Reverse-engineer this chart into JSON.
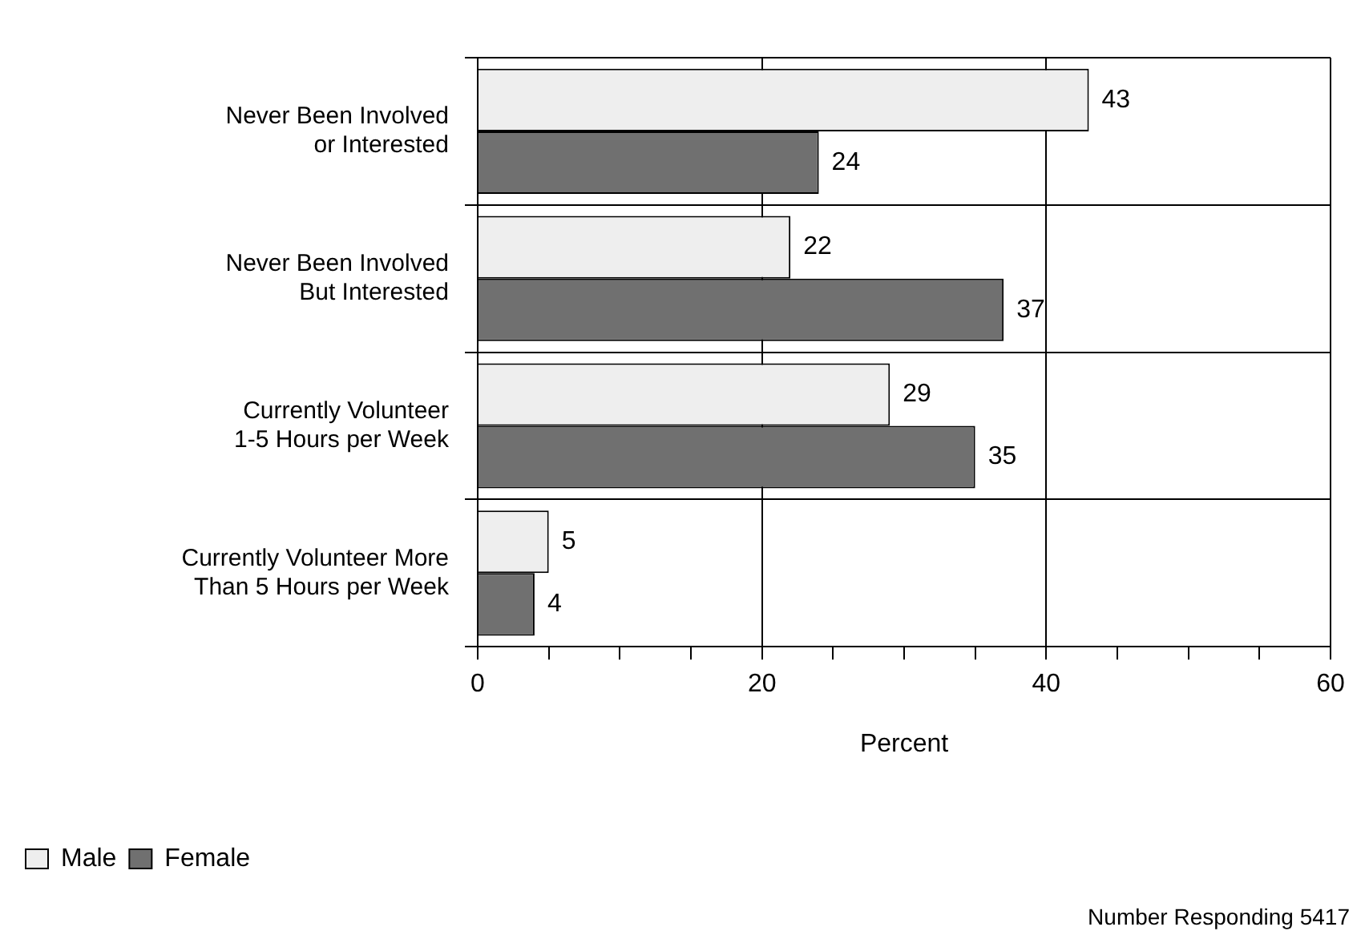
{
  "chart_data": {
    "type": "bar",
    "orientation": "horizontal",
    "categories": [
      "Never Been Involved\nor Interested",
      "Never Been Involved\nBut Interested",
      "Currently Volunteer\n1-5 Hours per Week",
      "Currently Volunteer More\nThan 5 Hours per Week"
    ],
    "series": [
      {
        "name": "Male",
        "color": "#eeeeee",
        "values": [
          43,
          22,
          29,
          5
        ]
      },
      {
        "name": "Female",
        "color": "#707070",
        "values": [
          24,
          37,
          35,
          4
        ]
      }
    ],
    "xlabel": "Percent",
    "xlim": [
      0,
      60
    ],
    "xticks": [
      0,
      {
        "value": 5,
        "label": null
      },
      {
        "value": 10,
        "label": null
      },
      {
        "value": 15,
        "label": null
      },
      20,
      {
        "value": 25,
        "label": null
      },
      {
        "value": 30,
        "label": null
      },
      {
        "value": 35,
        "label": null
      },
      40,
      {
        "value": 45,
        "label": null
      },
      {
        "value": 50,
        "label": null
      },
      {
        "value": 55,
        "label": null
      },
      60
    ],
    "grid": true,
    "legend": "bottom left",
    "data_labels": true,
    "annotations": [
      "Number Responding 5417"
    ]
  }
}
